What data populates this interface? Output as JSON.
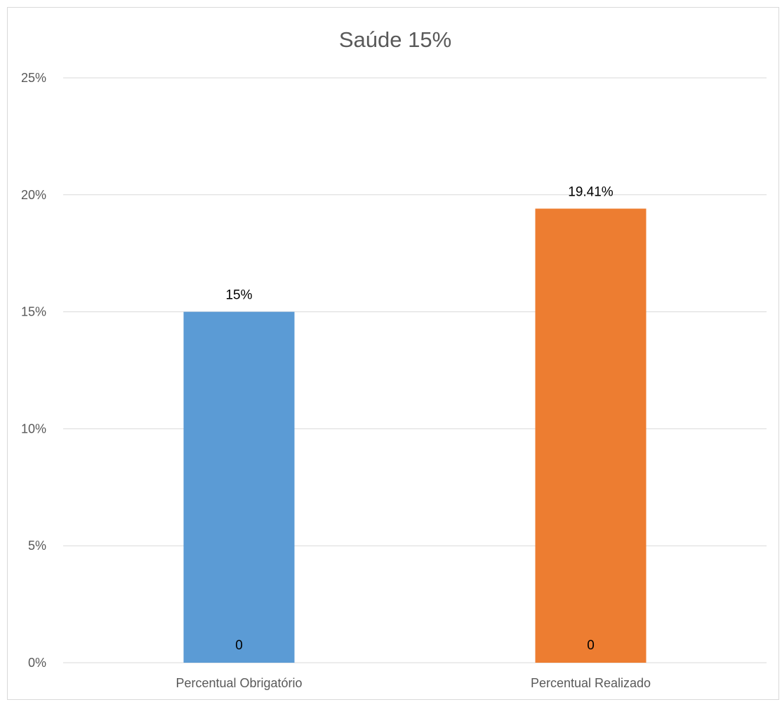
{
  "chart_data": {
    "type": "bar",
    "title": "Saúde 15%",
    "xlabel": "",
    "ylabel": "",
    "categories": [
      "Percentual Obrigatório",
      "Percentual Realizado"
    ],
    "values": [
      15,
      19.41
    ],
    "value_labels": [
      "15%",
      "19.41%"
    ],
    "base_labels": [
      "0",
      "0"
    ],
    "colors": [
      "#5B9BD5",
      "#ED7D31"
    ],
    "ylim": [
      0,
      25
    ],
    "yticks": [
      0,
      5,
      10,
      15,
      20,
      25
    ],
    "ytick_labels": [
      "0%",
      "5%",
      "10%",
      "15%",
      "20%",
      "25%"
    ],
    "grid": true,
    "legend": "none"
  }
}
